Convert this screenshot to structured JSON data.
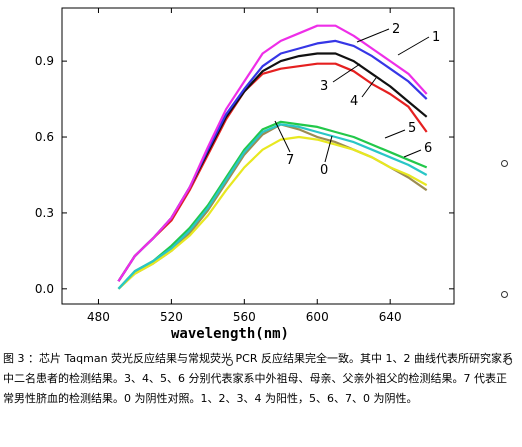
{
  "chart_data": {
    "type": "line",
    "title": "",
    "xlabel": "wavelength(nm)",
    "ylabel": "",
    "xlim": [
      460,
      675
    ],
    "ylim": [
      -0.06,
      1.11
    ],
    "xticks": [
      480,
      520,
      560,
      600,
      640
    ],
    "yticks": [
      0.0,
      0.3,
      0.6,
      0.9
    ],
    "xtick_labels": [
      "480",
      "520",
      "560",
      "600",
      "640"
    ],
    "ytick_labels": [
      "0.0",
      "0.3",
      "0.6",
      "0.9"
    ],
    "grid": false,
    "series": [
      {
        "label": "1",
        "color": "#ee2ee8",
        "x": [
          491,
          500,
          510,
          520,
          530,
          540,
          550,
          560,
          570,
          580,
          590,
          600,
          610,
          620,
          630,
          640,
          650,
          660
        ],
        "y": [
          0.03,
          0.13,
          0.2,
          0.28,
          0.4,
          0.56,
          0.71,
          0.82,
          0.93,
          0.98,
          1.01,
          1.04,
          1.04,
          1.0,
          0.95,
          0.9,
          0.85,
          0.77
        ]
      },
      {
        "label": "2",
        "color": "#3636e6",
        "x": [
          491,
          500,
          510,
          520,
          530,
          540,
          550,
          560,
          570,
          580,
          590,
          600,
          610,
          620,
          630,
          640,
          650,
          660
        ],
        "y": [
          0.03,
          0.13,
          0.2,
          0.28,
          0.4,
          0.55,
          0.69,
          0.79,
          0.88,
          0.93,
          0.95,
          0.97,
          0.98,
          0.96,
          0.92,
          0.87,
          0.82,
          0.75
        ]
      },
      {
        "label": "3",
        "color": "#111111",
        "x": [
          491,
          500,
          510,
          520,
          530,
          540,
          550,
          560,
          570,
          580,
          590,
          600,
          610,
          620,
          630,
          640,
          650,
          660
        ],
        "y": [
          0.03,
          0.13,
          0.2,
          0.28,
          0.4,
          0.54,
          0.68,
          0.78,
          0.86,
          0.9,
          0.92,
          0.93,
          0.93,
          0.9,
          0.85,
          0.8,
          0.74,
          0.68
        ]
      },
      {
        "label": "4",
        "color": "#e52020",
        "x": [
          491,
          500,
          510,
          520,
          530,
          540,
          550,
          560,
          570,
          580,
          590,
          600,
          610,
          620,
          630,
          640,
          650,
          660
        ],
        "y": [
          0.03,
          0.13,
          0.2,
          0.27,
          0.39,
          0.53,
          0.67,
          0.78,
          0.85,
          0.87,
          0.88,
          0.89,
          0.89,
          0.86,
          0.81,
          0.77,
          0.72,
          0.62
        ]
      },
      {
        "label": "5",
        "color": "#22c84a",
        "x": [
          491,
          500,
          510,
          520,
          530,
          540,
          550,
          560,
          570,
          580,
          590,
          600,
          610,
          620,
          630,
          640,
          650,
          660
        ],
        "y": [
          0.0,
          0.07,
          0.11,
          0.17,
          0.24,
          0.33,
          0.44,
          0.55,
          0.63,
          0.66,
          0.65,
          0.64,
          0.62,
          0.6,
          0.57,
          0.54,
          0.51,
          0.48
        ]
      },
      {
        "label": "6",
        "color": "#29c6c6",
        "x": [
          491,
          500,
          510,
          520,
          530,
          540,
          550,
          560,
          570,
          580,
          590,
          600,
          610,
          620,
          630,
          640,
          650,
          660
        ],
        "y": [
          0.0,
          0.07,
          0.11,
          0.16,
          0.23,
          0.32,
          0.43,
          0.54,
          0.62,
          0.65,
          0.64,
          0.62,
          0.6,
          0.58,
          0.55,
          0.52,
          0.49,
          0.45
        ]
      },
      {
        "label": "7",
        "color": "#e8e820",
        "x": [
          491,
          500,
          510,
          520,
          530,
          540,
          550,
          560,
          570,
          580,
          590,
          600,
          610,
          620,
          630,
          640,
          650,
          660
        ],
        "y": [
          0.0,
          0.06,
          0.1,
          0.15,
          0.21,
          0.29,
          0.39,
          0.48,
          0.55,
          0.59,
          0.6,
          0.59,
          0.57,
          0.55,
          0.52,
          0.48,
          0.45,
          0.41
        ]
      },
      {
        "label": "0",
        "color": "#9c8c52",
        "x": [
          491,
          500,
          510,
          520,
          530,
          540,
          550,
          560,
          570,
          580,
          590,
          600,
          610,
          620,
          630,
          640,
          650,
          660
        ],
        "y": [
          0.0,
          0.06,
          0.1,
          0.15,
          0.22,
          0.31,
          0.42,
          0.53,
          0.61,
          0.65,
          0.63,
          0.6,
          0.58,
          0.55,
          0.52,
          0.48,
          0.44,
          0.39
        ]
      }
    ],
    "annotations": [
      "1",
      "2",
      "3",
      "4",
      "5",
      "6",
      "7",
      "0"
    ]
  },
  "caption": {
    "text": "图 3 ：芯片 Taqman 荧光反应结果与常规荧光 PCR 反应结果完全一致。其中 1、2 曲线代表所研究家系中二名患者的检测结果。3、4、5、6 分别代表家系中外祖母、母亲、父亲外祖父的检测结果。7 代表正常男性脐血的检测结果。0 为阴性对照。1、2、3、4 为阳性，5、6、7、0 为阴性。"
  }
}
